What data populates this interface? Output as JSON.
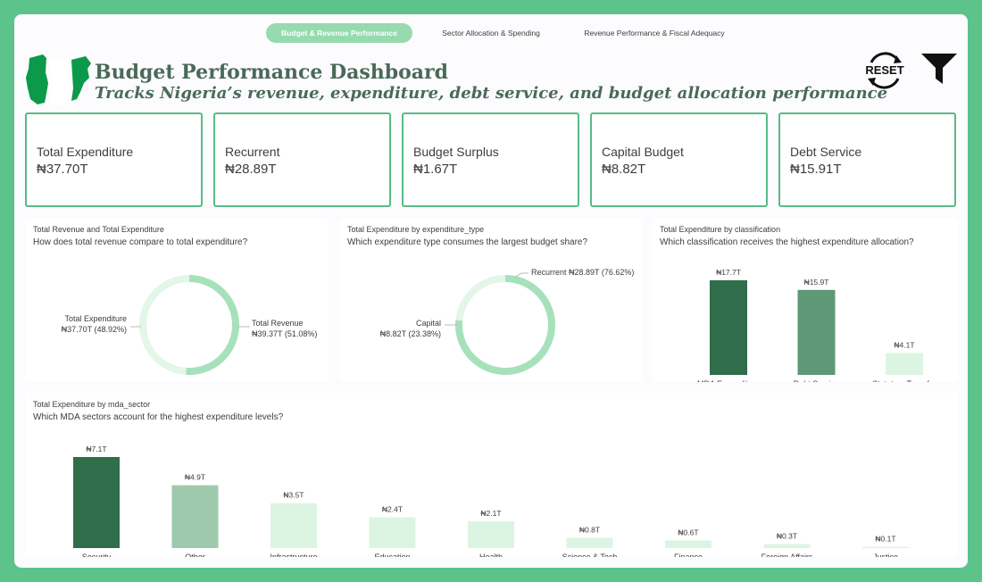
{
  "tabs": [
    {
      "label": "Budget & Revenue Performance",
      "active": true
    },
    {
      "label": "Sector Allocation & Spending",
      "active": false
    },
    {
      "label": "Revenue Performance & Fiscal Adequacy",
      "active": false
    }
  ],
  "header": {
    "title": "Budget Performance Dashboard",
    "subtitle": "Tracks Nigeria’s revenue, expenditure, debt service, and budget allocation performance",
    "reset_label": "RESET",
    "flag_icon": "nigeria-map-flag-icon",
    "reset_icon": "reset-icon",
    "filter_icon": "filter-icon"
  },
  "colors": {
    "dark_green": "#2f6d4b",
    "mid_green": "#5f9876",
    "sage_green": "#9fc9ad",
    "pale_green": "#dcf5e2",
    "light_ring": "#e3f6e8",
    "ring_green": "#a7e1bc",
    "frame": "#5cc38a"
  },
  "kpis": [
    {
      "label": "Total Expenditure",
      "value": "₦37.70T"
    },
    {
      "label": "Recurrent",
      "value": "₦28.89T"
    },
    {
      "label": "Budget Surplus",
      "value": "₦1.67T"
    },
    {
      "label": "Capital Budget",
      "value": "₦8.82T"
    },
    {
      "label": "Debt Service",
      "value": "₦15.91T"
    }
  ],
  "visuals": {
    "revenue_vs_expenditure": {
      "title": "Total Revenue and Total Expenditure",
      "question": "How does total revenue compare to total expenditure?"
    },
    "expenditure_type": {
      "title": "Total Expenditure by expenditure_type",
      "question": "Which expenditure type consumes the largest budget share?"
    },
    "classification": {
      "title": "Total Expenditure by classification",
      "question": "Which classification receives the highest expenditure allocation?"
    },
    "mda_sector": {
      "title": "Total Expenditure by mda_sector",
      "question": "Which MDA sectors account for the highest expenditure levels?"
    }
  },
  "chart_data": [
    {
      "type": "pie",
      "donut": true,
      "slices": [
        {
          "name": "Total Revenue",
          "value": 39.37,
          "percent": 51.08,
          "value_label": "₦39.37T (51.08%)",
          "color": "#a7e1bc"
        },
        {
          "name": "Total Expenditure",
          "value": 37.7,
          "percent": 48.92,
          "value_label": "₦37.70T (48.92%)",
          "color": "#e3f6e8"
        }
      ]
    },
    {
      "type": "pie",
      "donut": true,
      "slices": [
        {
          "name": "Recurrent",
          "value": 28.89,
          "percent": 76.62,
          "value_label": "₦28.89T (76.62%)",
          "color": "#a7e1bc"
        },
        {
          "name": "Capital",
          "value": 8.82,
          "percent": 23.38,
          "value_label": "₦8.82T (23.38%)",
          "color": "#e3f6e8"
        }
      ]
    },
    {
      "type": "bar",
      "categories": [
        "MDA Expenditure",
        "Debt Service",
        "Statutory Transfer"
      ],
      "values": [
        17.7,
        15.9,
        4.1
      ],
      "value_labels": [
        "₦17.7T",
        "₦15.9T",
        "₦4.1T"
      ],
      "colors": [
        "#2f6d4b",
        "#5f9876",
        "#dcf5e2"
      ],
      "ylim": [
        0,
        17.7
      ]
    },
    {
      "type": "bar",
      "categories": [
        "Security",
        "Other",
        "Infrastructure",
        "Education",
        "Health",
        "Science & Tech",
        "Finance",
        "Foreign Affairs",
        "Justice"
      ],
      "values": [
        7.1,
        4.9,
        3.5,
        2.4,
        2.1,
        0.8,
        0.6,
        0.3,
        0.1
      ],
      "value_labels": [
        "₦7.1T",
        "₦4.9T",
        "₦3.5T",
        "₦2.4T",
        "₦2.1T",
        "₦0.8T",
        "₦0.6T",
        "₦0.3T",
        "₦0.1T"
      ],
      "colors": [
        "#2f6d4b",
        "#9fc9ad",
        "#dcf5e2",
        "#dcf5e2",
        "#dcf5e2",
        "#dcf5e2",
        "#dcf5e2",
        "#dcf5e2",
        "#dcf5e2"
      ],
      "ylim": [
        0,
        7.1
      ]
    }
  ]
}
